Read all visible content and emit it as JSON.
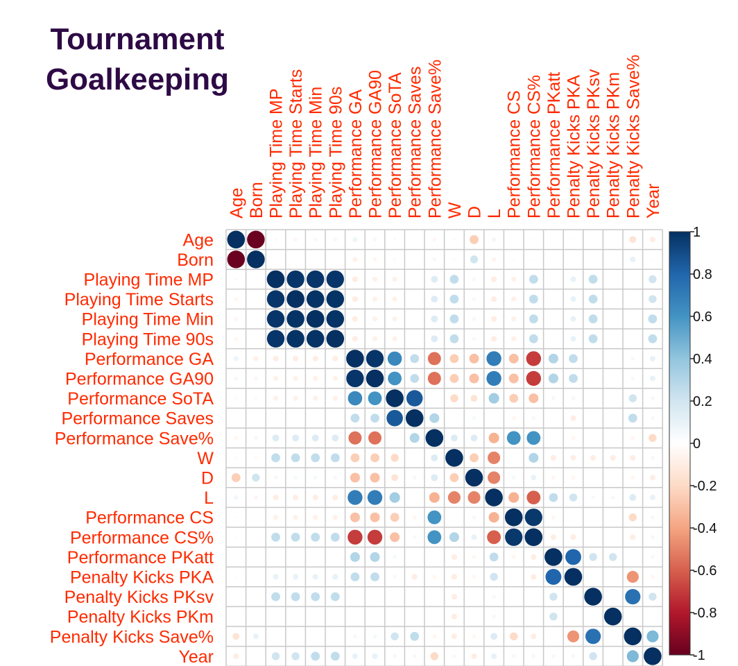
{
  "title_lines": [
    "Tournament",
    "Goalkeeping"
  ],
  "chart_data": {
    "type": "heatmap",
    "variant": "correlation-circles",
    "title": "Tournament Goalkeeping",
    "variables": [
      "Age",
      "Born",
      "Playing Time MP",
      "Playing Time Starts",
      "Playing Time Min",
      "Playing Time 90s",
      "Performance GA",
      "Performance GA90",
      "Performance SoTA",
      "Performance Saves",
      "Performance Save%",
      "W",
      "D",
      "L",
      "Performance CS",
      "Performance CS%",
      "Performance PKatt",
      "Penalty Kicks PKA",
      "Penalty Kicks PKsv",
      "Penalty Kicks PKm",
      "Penalty Kicks Save%",
      "Year"
    ],
    "matrix": [
      [
        1,
        -0.99,
        0.03,
        -0.05,
        -0.05,
        -0.05,
        0.08,
        0.05,
        0.03,
        -0.01,
        -0.05,
        0.03,
        -0.25,
        0.06,
        0.02,
        0.02,
        0.0,
        0.02,
        0.0,
        0.0,
        -0.15,
        -0.1
      ],
      [
        -0.99,
        1,
        0.0,
        0.0,
        0.0,
        0.0,
        -0.08,
        -0.05,
        -0.03,
        0.01,
        0.05,
        -0.03,
        0.2,
        -0.06,
        -0.02,
        -0.02,
        0.0,
        0.0,
        0.0,
        0.0,
        0.1,
        0.02
      ],
      [
        0.03,
        0.0,
        1,
        0.98,
        0.98,
        0.98,
        -0.1,
        -0.08,
        -0.08,
        0.0,
        0.15,
        0.25,
        0.05,
        -0.1,
        -0.08,
        0.25,
        0.0,
        0.1,
        0.25,
        0.0,
        0.0,
        0.2
      ],
      [
        -0.05,
        0.0,
        0.98,
        1,
        0.99,
        0.99,
        -0.1,
        -0.08,
        -0.08,
        0.0,
        0.15,
        0.25,
        0.05,
        -0.1,
        -0.08,
        0.25,
        0.0,
        0.1,
        0.25,
        0.0,
        0.0,
        0.2
      ],
      [
        -0.05,
        0.0,
        0.98,
        0.99,
        1,
        0.99,
        -0.1,
        -0.08,
        -0.08,
        0.0,
        0.15,
        0.25,
        0.05,
        -0.1,
        -0.08,
        0.25,
        0.0,
        0.1,
        0.25,
        0.0,
        0.0,
        0.25
      ],
      [
        -0.05,
        0.0,
        0.98,
        0.99,
        0.99,
        1,
        -0.1,
        -0.08,
        -0.08,
        0.0,
        0.15,
        0.25,
        0.05,
        -0.1,
        -0.08,
        0.25,
        0.0,
        0.1,
        0.25,
        0.0,
        0.0,
        0.25
      ],
      [
        0.08,
        -0.08,
        -0.1,
        -0.1,
        -0.1,
        -0.1,
        1,
        0.98,
        0.65,
        0.25,
        -0.55,
        -0.25,
        -0.3,
        0.7,
        -0.3,
        -0.7,
        0.3,
        0.25,
        0.0,
        0.0,
        0.05,
        0.1
      ],
      [
        0.05,
        -0.05,
        -0.08,
        -0.08,
        -0.08,
        -0.08,
        0.98,
        1,
        0.6,
        0.25,
        -0.55,
        -0.25,
        -0.3,
        0.7,
        -0.3,
        -0.7,
        0.3,
        0.25,
        0.0,
        0.0,
        0.05,
        0.1
      ],
      [
        0.03,
        -0.03,
        -0.08,
        -0.08,
        -0.08,
        -0.08,
        0.65,
        0.6,
        1,
        0.85,
        0.0,
        -0.2,
        -0.15,
        0.35,
        -0.25,
        -0.3,
        0.05,
        0.05,
        0.0,
        0.0,
        0.2,
        0.05
      ],
      [
        -0.01,
        0.01,
        0.0,
        0.0,
        0.0,
        0.0,
        0.25,
        0.25,
        0.85,
        1,
        0.3,
        0.0,
        0.05,
        0.0,
        -0.05,
        0.05,
        0.0,
        -0.1,
        0.0,
        0.0,
        0.25,
        0.05
      ],
      [
        -0.05,
        0.05,
        0.15,
        0.15,
        0.15,
        0.15,
        -0.55,
        -0.55,
        0.0,
        0.3,
        1,
        0.15,
        0.15,
        -0.35,
        0.6,
        0.6,
        0.0,
        -0.05,
        0.0,
        0.0,
        -0.05,
        -0.2
      ],
      [
        0.03,
        -0.03,
        0.25,
        0.25,
        0.25,
        0.25,
        -0.25,
        -0.25,
        -0.2,
        0.0,
        0.15,
        1,
        -0.25,
        -0.5,
        0.0,
        0.3,
        -0.1,
        -0.1,
        -0.1,
        -0.1,
        -0.1,
        0.05
      ],
      [
        -0.25,
        0.2,
        0.05,
        0.05,
        0.05,
        0.05,
        -0.3,
        -0.3,
        -0.15,
        0.05,
        0.15,
        -0.25,
        1,
        -0.5,
        0.05,
        0.1,
        -0.05,
        -0.05,
        0.0,
        0.0,
        -0.05,
        -0.1
      ],
      [
        0.06,
        -0.06,
        -0.1,
        -0.1,
        -0.1,
        -0.1,
        0.7,
        0.7,
        0.35,
        0.0,
        -0.35,
        -0.5,
        -0.5,
        1,
        -0.35,
        -0.6,
        0.25,
        0.2,
        0.05,
        0.05,
        0.15,
        0.1
      ],
      [
        0.02,
        -0.02,
        -0.08,
        -0.08,
        -0.08,
        -0.08,
        -0.3,
        -0.3,
        -0.25,
        -0.05,
        0.6,
        0.0,
        0.05,
        -0.35,
        1,
        0.97,
        -0.05,
        0.0,
        0.0,
        0.0,
        -0.2,
        0.05
      ],
      [
        0.02,
        -0.02,
        0.25,
        0.25,
        0.25,
        0.25,
        -0.7,
        -0.7,
        -0.3,
        0.05,
        0.6,
        0.3,
        0.1,
        -0.6,
        0.97,
        1,
        -0.1,
        -0.1,
        0.0,
        0.0,
        -0.1,
        0.05
      ],
      [
        0.0,
        0.0,
        0.0,
        0.0,
        0.0,
        0.0,
        0.3,
        0.3,
        0.05,
        0.0,
        0.0,
        -0.1,
        -0.05,
        0.25,
        -0.05,
        -0.1,
        1,
        0.8,
        0.2,
        0.2,
        0.0,
        0.05
      ],
      [
        0.02,
        0.0,
        0.1,
        0.1,
        0.1,
        0.1,
        0.25,
        0.25,
        0.05,
        -0.1,
        -0.05,
        -0.1,
        -0.05,
        0.2,
        0.0,
        -0.1,
        0.8,
        1,
        0.0,
        0.0,
        -0.45,
        -0.05
      ],
      [
        0.0,
        0.0,
        0.25,
        0.25,
        0.25,
        0.25,
        0.0,
        0.0,
        0.0,
        0.0,
        0.0,
        -0.1,
        0.0,
        0.05,
        0.0,
        0.0,
        0.2,
        0.0,
        1,
        0.0,
        0.75,
        0.2
      ],
      [
        0.0,
        0.0,
        0.0,
        0.0,
        0.0,
        0.0,
        0.0,
        0.0,
        0.0,
        0.0,
        0.0,
        -0.1,
        0.0,
        0.05,
        0.0,
        0.0,
        0.2,
        0.0,
        0.0,
        1,
        0.0,
        0.0
      ],
      [
        -0.15,
        0.1,
        0.0,
        0.0,
        0.0,
        0.0,
        0.05,
        0.05,
        0.2,
        0.25,
        -0.05,
        -0.1,
        -0.05,
        0.15,
        -0.2,
        -0.1,
        0.0,
        -0.45,
        0.75,
        0.0,
        1,
        0.45
      ],
      [
        -0.1,
        0.02,
        0.2,
        0.2,
        0.25,
        0.25,
        0.1,
        0.1,
        0.05,
        0.05,
        -0.2,
        0.05,
        -0.1,
        0.1,
        0.05,
        0.05,
        0.05,
        -0.05,
        0.2,
        0.0,
        0.45,
        1
      ]
    ],
    "color_scale": {
      "range": [
        -1,
        1
      ],
      "ticks": [
        1,
        0.8,
        0.6,
        0.4,
        0.2,
        0,
        -0.2,
        -0.4,
        -0.6,
        -0.8,
        -1
      ],
      "tick_labels": [
        "1",
        "0.8",
        "0.6",
        "0.4",
        "0.2",
        "0",
        "-0.2",
        "-0.4",
        "-0.6",
        "-0.8",
        "-1"
      ],
      "low_color": "#67001f",
      "mid_color": "#ffffff",
      "high_color": "#053061"
    },
    "label_color": "#ff2a00",
    "grid": true,
    "legend_placement": "right"
  }
}
